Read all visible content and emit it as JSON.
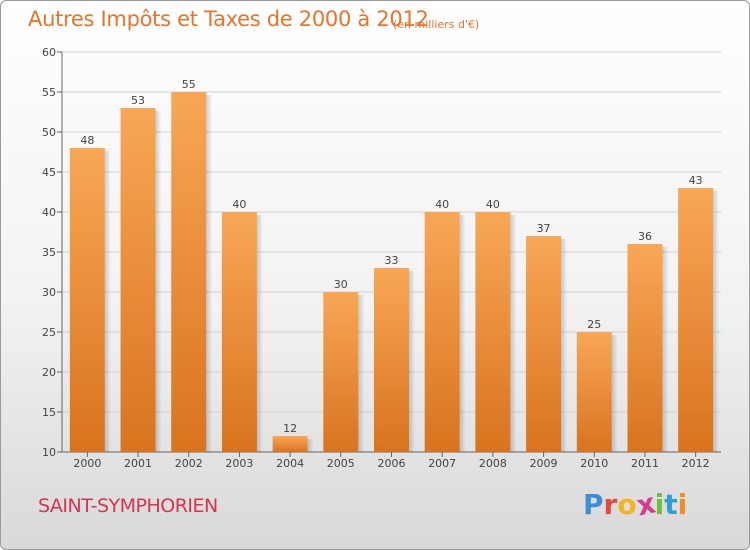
{
  "chart_data": {
    "type": "bar",
    "title": "Autres Impôts et Taxes de 2000 à 2012",
    "subtitle": "(en milliers d'€)",
    "categories": [
      "2000",
      "2001",
      "2002",
      "2003",
      "2004",
      "2005",
      "2006",
      "2007",
      "2008",
      "2009",
      "2010",
      "2011",
      "2012"
    ],
    "values": [
      48,
      53,
      55,
      40,
      12,
      30,
      33,
      40,
      40,
      37,
      25,
      36,
      43
    ],
    "ylim": [
      10,
      60
    ],
    "yticks": [
      10,
      15,
      20,
      25,
      30,
      35,
      40,
      45,
      50,
      55,
      60
    ],
    "xlabel": "",
    "ylabel": "",
    "grid": true,
    "colors": {
      "bar_top": "#f8a756",
      "bar_bottom": "#d9731e",
      "title": "#e8732a",
      "location": "#d7344d"
    }
  },
  "location": "SAINT-SYMPHORIEN",
  "brand": {
    "letters": [
      "P",
      "r",
      "o",
      "x",
      "i",
      "t",
      "i"
    ],
    "colors": [
      "#3a8fd8",
      "#e24a3b",
      "#f2b51d",
      "#d93a8a",
      "#6fbf3a",
      "#2e9fd6",
      "#f28c1e"
    ]
  }
}
